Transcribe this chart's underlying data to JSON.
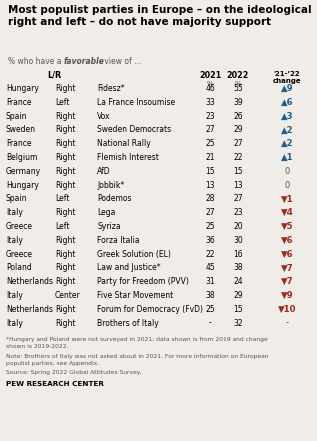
{
  "title": "Most populist parties in Europe – on the ideological\nright and left – do not have majority support",
  "rows": [
    {
      "country": "Hungary",
      "lr": "Right",
      "party": "Fidesz*",
      "y2021": "46",
      "y2022": "55",
      "change": 9,
      "direction": "up"
    },
    {
      "country": "France",
      "lr": "Left",
      "party": "La France Insoumise",
      "y2021": "33",
      "y2022": "39",
      "change": 6,
      "direction": "up"
    },
    {
      "country": "Spain",
      "lr": "Right",
      "party": "Vox",
      "y2021": "23",
      "y2022": "26",
      "change": 3,
      "direction": "up"
    },
    {
      "country": "Sweden",
      "lr": "Right",
      "party": "Sweden Democrats",
      "y2021": "27",
      "y2022": "29",
      "change": 2,
      "direction": "up"
    },
    {
      "country": "France",
      "lr": "Right",
      "party": "National Rally",
      "y2021": "25",
      "y2022": "27",
      "change": 2,
      "direction": "up"
    },
    {
      "country": "Belgium",
      "lr": "Right",
      "party": "Flemish Interest",
      "y2021": "21",
      "y2022": "22",
      "change": 1,
      "direction": "up"
    },
    {
      "country": "Germany",
      "lr": "Right",
      "party": "AfD",
      "y2021": "15",
      "y2022": "15",
      "change": 0,
      "direction": "none"
    },
    {
      "country": "Hungary",
      "lr": "Right",
      "party": "Jobbik*",
      "y2021": "13",
      "y2022": "13",
      "change": 0,
      "direction": "none"
    },
    {
      "country": "Spain",
      "lr": "Left",
      "party": "Podemos",
      "y2021": "28",
      "y2022": "27",
      "change": 1,
      "direction": "down"
    },
    {
      "country": "Italy",
      "lr": "Right",
      "party": "Lega",
      "y2021": "27",
      "y2022": "23",
      "change": 4,
      "direction": "down"
    },
    {
      "country": "Greece",
      "lr": "Left",
      "party": "Syriza",
      "y2021": "25",
      "y2022": "20",
      "change": 5,
      "direction": "down"
    },
    {
      "country": "Italy",
      "lr": "Right",
      "party": "Forza Italia",
      "y2021": "36",
      "y2022": "30",
      "change": 6,
      "direction": "down"
    },
    {
      "country": "Greece",
      "lr": "Right",
      "party": "Greek Solution (EL)",
      "y2021": "22",
      "y2022": "16",
      "change": 6,
      "direction": "down"
    },
    {
      "country": "Poland",
      "lr": "Right",
      "party": "Law and Justice*",
      "y2021": "45",
      "y2022": "38",
      "change": 7,
      "direction": "down"
    },
    {
      "country": "Netherlands",
      "lr": "Right",
      "party": "Party for Freedom (PVV)",
      "y2021": "31",
      "y2022": "24",
      "change": 7,
      "direction": "down"
    },
    {
      "country": "Italy",
      "lr": "Center",
      "party": "Five Star Movement",
      "y2021": "38",
      "y2022": "29",
      "change": 9,
      "direction": "down"
    },
    {
      "country": "Netherlands",
      "lr": "Right",
      "party": "Forum for Democracy (FvD)",
      "y2021": "25",
      "y2022": "15",
      "change": 10,
      "direction": "down"
    },
    {
      "country": "Italy",
      "lr": "Right",
      "party": "Brothers of Italy",
      "y2021": "-",
      "y2022": "32",
      "change": null,
      "direction": "dash"
    }
  ],
  "footnote1": "*Hungary and Poland were not surveyed in 2021; data shown is from 2019 and change\nshown is 2019-2022.",
  "footnote2": "Note: Brothers of Italy was not asked about in 2021. For more information on European\npopulist parties, see Appendix.",
  "footnote3": "Source: Spring 2022 Global Attitudes Survey.",
  "source_label": "PEW RESEARCH CENTER",
  "bg_color": "#f0ede8",
  "change_col_bg": "#d9d3c7",
  "up_color": "#1f5f8b",
  "down_color": "#a0281e",
  "neutral_color": "#555555"
}
